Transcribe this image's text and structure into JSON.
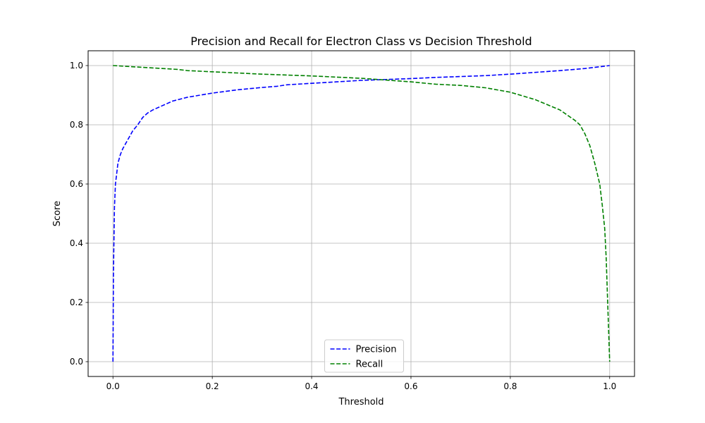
{
  "chart_data": {
    "type": "line",
    "title": "Precision and Recall for Electron Class vs Decision Threshold",
    "xlabel": "Threshold",
    "ylabel": "Score",
    "xlim": [
      -0.05,
      1.05
    ],
    "ylim": [
      -0.05,
      1.05
    ],
    "xticks": [
      0.0,
      0.2,
      0.4,
      0.6,
      0.8,
      1.0
    ],
    "yticks": [
      0.0,
      0.2,
      0.4,
      0.6,
      0.8,
      1.0
    ],
    "xtick_labels": [
      "0.0",
      "0.2",
      "0.4",
      "0.6",
      "0.8",
      "1.0"
    ],
    "ytick_labels": [
      "0.0",
      "0.2",
      "0.4",
      "0.6",
      "0.8",
      "1.0"
    ],
    "grid": true,
    "legend": {
      "placement": "lower center"
    },
    "series": [
      {
        "name": "Precision",
        "color": "#0000ff",
        "linestyle": "dashed",
        "points": [
          [
            0.0,
            0.0
          ],
          [
            0.001,
            0.3
          ],
          [
            0.003,
            0.52
          ],
          [
            0.005,
            0.6
          ],
          [
            0.01,
            0.67
          ],
          [
            0.015,
            0.7
          ],
          [
            0.02,
            0.72
          ],
          [
            0.03,
            0.75
          ],
          [
            0.04,
            0.78
          ],
          [
            0.05,
            0.8
          ],
          [
            0.06,
            0.825
          ],
          [
            0.07,
            0.84
          ],
          [
            0.08,
            0.85
          ],
          [
            0.1,
            0.865
          ],
          [
            0.12,
            0.88
          ],
          [
            0.15,
            0.893
          ],
          [
            0.2,
            0.907
          ],
          [
            0.25,
            0.918
          ],
          [
            0.3,
            0.926
          ],
          [
            0.33,
            0.93
          ],
          [
            0.35,
            0.935
          ],
          [
            0.4,
            0.94
          ],
          [
            0.45,
            0.945
          ],
          [
            0.5,
            0.95
          ],
          [
            0.55,
            0.953
          ],
          [
            0.6,
            0.956
          ],
          [
            0.65,
            0.96
          ],
          [
            0.7,
            0.963
          ],
          [
            0.75,
            0.966
          ],
          [
            0.8,
            0.971
          ],
          [
            0.85,
            0.977
          ],
          [
            0.9,
            0.983
          ],
          [
            0.95,
            0.99
          ],
          [
            1.0,
            1.0
          ]
        ]
      },
      {
        "name": "Recall",
        "color": "#008000",
        "linestyle": "dashed",
        "points": [
          [
            0.0,
            1.0
          ],
          [
            0.05,
            0.995
          ],
          [
            0.1,
            0.99
          ],
          [
            0.13,
            0.987
          ],
          [
            0.15,
            0.983
          ],
          [
            0.2,
            0.979
          ],
          [
            0.25,
            0.975
          ],
          [
            0.3,
            0.971
          ],
          [
            0.35,
            0.968
          ],
          [
            0.4,
            0.965
          ],
          [
            0.45,
            0.961
          ],
          [
            0.5,
            0.957
          ],
          [
            0.55,
            0.951
          ],
          [
            0.6,
            0.945
          ],
          [
            0.65,
            0.937
          ],
          [
            0.7,
            0.933
          ],
          [
            0.75,
            0.925
          ],
          [
            0.8,
            0.91
          ],
          [
            0.85,
            0.885
          ],
          [
            0.9,
            0.85
          ],
          [
            0.93,
            0.815
          ],
          [
            0.94,
            0.8
          ],
          [
            0.95,
            0.77
          ],
          [
            0.96,
            0.73
          ],
          [
            0.97,
            0.67
          ],
          [
            0.98,
            0.6
          ],
          [
            0.985,
            0.53
          ],
          [
            0.99,
            0.45
          ],
          [
            0.993,
            0.35
          ],
          [
            0.996,
            0.2
          ],
          [
            1.0,
            0.0
          ]
        ]
      }
    ]
  }
}
